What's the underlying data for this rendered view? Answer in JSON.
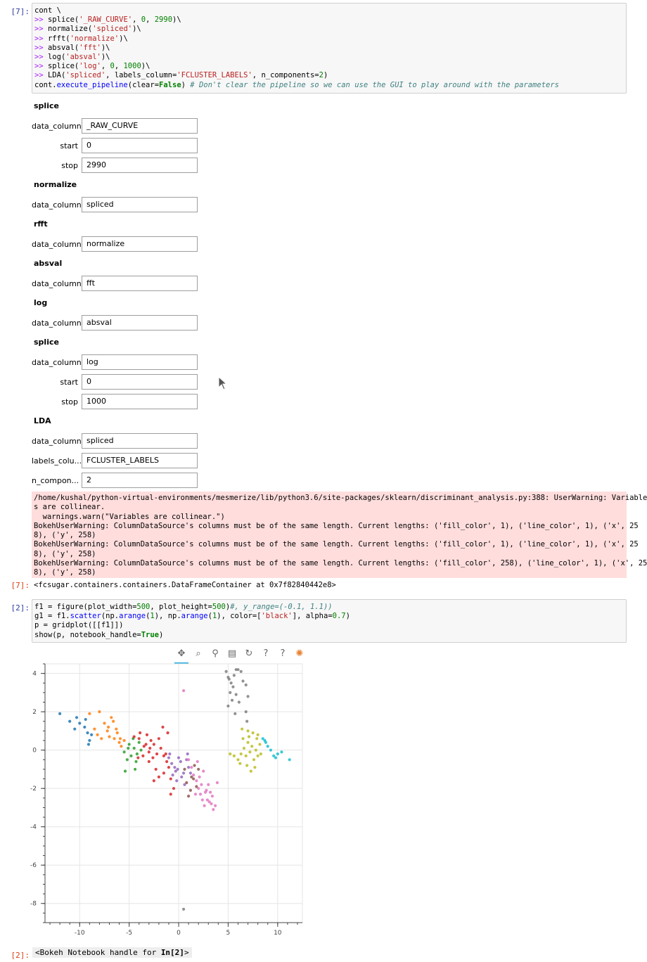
{
  "cell7": {
    "prompt_in": "[7]:",
    "prompt_out": "[7]:",
    "code": [
      [
        [
          "t",
          "cont \\"
        ]
      ],
      [
        [
          "k",
          ">>"
        ],
        [
          "t",
          " splice("
        ],
        [
          "s",
          "'_RAW_CURVE'"
        ],
        [
          "t",
          ", "
        ],
        [
          "n",
          "0"
        ],
        [
          "t",
          ", "
        ],
        [
          "n",
          "2990"
        ],
        [
          "t",
          ")\\"
        ]
      ],
      [
        [
          "k",
          ">>"
        ],
        [
          "t",
          " normalize("
        ],
        [
          "s",
          "'spliced'"
        ],
        [
          "t",
          ")\\"
        ]
      ],
      [
        [
          "k",
          ">>"
        ],
        [
          "t",
          " rfft("
        ],
        [
          "s",
          "'normalize'"
        ],
        [
          "t",
          ")\\"
        ]
      ],
      [
        [
          "k",
          ">>"
        ],
        [
          "t",
          " absval("
        ],
        [
          "s",
          "'fft'"
        ],
        [
          "t",
          ")\\"
        ]
      ],
      [
        [
          "k",
          ">>"
        ],
        [
          "t",
          " log("
        ],
        [
          "s",
          "'absval'"
        ],
        [
          "t",
          ")\\"
        ]
      ],
      [
        [
          "k",
          ">>"
        ],
        [
          "t",
          " splice("
        ],
        [
          "s",
          "'log'"
        ],
        [
          "t",
          ", "
        ],
        [
          "n",
          "0"
        ],
        [
          "t",
          ", "
        ],
        [
          "n",
          "1000"
        ],
        [
          "t",
          ")\\"
        ]
      ],
      [
        [
          "k",
          ">>"
        ],
        [
          "t",
          " LDA("
        ],
        [
          "s",
          "'spliced'"
        ],
        [
          "t",
          ", labels_column="
        ],
        [
          "s",
          "'FCLUSTER_LABELS'"
        ],
        [
          "t",
          ", n_components="
        ],
        [
          "n",
          "2"
        ],
        [
          "t",
          ")"
        ]
      ],
      [
        [
          "t",
          "cont."
        ],
        [
          "f",
          "execute_pipeline"
        ],
        [
          "t",
          "(clear="
        ],
        [
          "kw",
          "False"
        ],
        [
          "t",
          ") "
        ],
        [
          "c",
          "# Don't clear the pipeline so we can use the GUI to play around with the parameters"
        ]
      ]
    ],
    "widget_groups": [
      {
        "title": "splice",
        "fields": [
          {
            "label": "data_column",
            "value": "_RAW_CURVE"
          },
          {
            "label": "start",
            "value": "0"
          },
          {
            "label": "stop",
            "value": "2990"
          }
        ]
      },
      {
        "title": "normalize",
        "fields": [
          {
            "label": "data_column",
            "value": "spliced"
          }
        ]
      },
      {
        "title": "rfft",
        "fields": [
          {
            "label": "data_column",
            "value": "normalize"
          }
        ]
      },
      {
        "title": "absval",
        "fields": [
          {
            "label": "data_column",
            "value": "fft"
          }
        ]
      },
      {
        "title": "log",
        "fields": [
          {
            "label": "data_column",
            "value": "absval"
          }
        ]
      },
      {
        "title": "splice",
        "fields": [
          {
            "label": "data_column",
            "value": "log"
          },
          {
            "label": "start",
            "value": "0"
          },
          {
            "label": "stop",
            "value": "1000"
          }
        ]
      },
      {
        "title": "LDA",
        "fields": [
          {
            "label": "data_column",
            "value": "spliced"
          },
          {
            "label": "labels_colu...",
            "value": "FCLUSTER_LABELS"
          },
          {
            "label": "n_compon...",
            "value": "2"
          }
        ]
      }
    ],
    "stderr": [
      "/home/kushal/python-virtual-environments/mesmerize/lib/python3.6/site-packages/sklearn/discriminant_analysis.py:388: UserWarning: Variable",
      "s are collinear.",
      "  warnings.warn(\"Variables are collinear.\")",
      "BokehUserWarning: ColumnDataSource's columns must be of the same length. Current lengths: ('fill_color', 1), ('line_color', 1), ('x', 25",
      "8), ('y', 258)",
      "BokehUserWarning: ColumnDataSource's columns must be of the same length. Current lengths: ('fill_color', 1), ('line_color', 1), ('x', 25",
      "8), ('y', 258)",
      "BokehUserWarning: ColumnDataSource's columns must be of the same length. Current lengths: ('fill_color', 258), ('line_color', 1), ('x', 25",
      "8), ('y', 258)"
    ],
    "output": "<fcsugar.containers.containers.DataFrameContainer at 0x7f82840442e8>"
  },
  "cell2": {
    "prompt_in": "[2]:",
    "prompt_out": "[2]:",
    "code": [
      [
        [
          "t",
          "f1 = figure(plot_width="
        ],
        [
          "n",
          "500"
        ],
        [
          "t",
          ", plot_height="
        ],
        [
          "n",
          "500"
        ],
        [
          "t",
          ")"
        ],
        [
          "c",
          "#, y_range=(-0.1, 1.1))"
        ]
      ],
      [
        [
          "t",
          "g1 = f1."
        ],
        [
          "f",
          "scatter"
        ],
        [
          "t",
          "(np."
        ],
        [
          "f",
          "arange"
        ],
        [
          "t",
          "("
        ],
        [
          "n",
          "1"
        ],
        [
          "t",
          "), np."
        ],
        [
          "f",
          "arange"
        ],
        [
          "t",
          "("
        ],
        [
          "n",
          "1"
        ],
        [
          "t",
          "), color=["
        ],
        [
          "s",
          "'black'"
        ],
        [
          "t",
          "], alpha="
        ],
        [
          "n",
          "0.7"
        ],
        [
          "t",
          ")"
        ]
      ],
      [
        [
          "t",
          "p = gridplot([[f1]])"
        ]
      ],
      [
        [
          "t",
          "show(p, notebook_handle="
        ],
        [
          "kw",
          "True"
        ],
        [
          "t",
          ")"
        ]
      ]
    ],
    "handle_text_pre": "<Bokeh Notebook handle for ",
    "handle_text_bold": "In[2]",
    "handle_text_post": ">"
  },
  "toolbar": [
    {
      "name": "pan-tool-icon",
      "glyph": "✥",
      "active": true
    },
    {
      "name": "box-zoom-tool-icon",
      "glyph": "⌕",
      "active": false
    },
    {
      "name": "wheel-zoom-tool-icon",
      "glyph": "⚲",
      "active": false
    },
    {
      "name": "save-tool-icon",
      "glyph": "▤",
      "active": false
    },
    {
      "name": "reset-tool-icon",
      "glyph": "↻",
      "active": false
    },
    {
      "name": "help-icon",
      "glyph": "?",
      "active": false
    },
    {
      "name": "help-icon-2",
      "glyph": "?",
      "active": false
    },
    {
      "name": "bokeh-logo-icon",
      "glyph": "✺",
      "active": false
    }
  ],
  "chart_data": {
    "type": "scatter",
    "xlim": [
      -13.5,
      12.5
    ],
    "ylim": [
      -9,
      4.5
    ],
    "xticks": [
      -10,
      -5,
      0,
      5,
      10
    ],
    "yticks": [
      4,
      2,
      0,
      -2,
      -4,
      -6,
      -8
    ],
    "grid": true,
    "series": [
      {
        "color": "#1f77b4",
        "points": [
          [
            -12.0,
            1.9
          ],
          [
            -11.0,
            1.5
          ],
          [
            -10.3,
            1.7
          ],
          [
            -10.0,
            1.4
          ],
          [
            -9.5,
            1.2
          ],
          [
            -9.2,
            0.9
          ],
          [
            -9.0,
            0.5
          ],
          [
            -8.8,
            0.8
          ],
          [
            -9.1,
            0.3
          ],
          [
            -10.5,
            1.1
          ],
          [
            -9.4,
            1.6
          ]
        ]
      },
      {
        "color": "#ff7f0e",
        "points": [
          [
            -9.0,
            1.9
          ],
          [
            -8.0,
            2.0
          ],
          [
            -7.5,
            1.4
          ],
          [
            -7.2,
            1.0
          ],
          [
            -7.0,
            0.7
          ],
          [
            -6.8,
            1.7
          ],
          [
            -6.5,
            0.6
          ],
          [
            -6.2,
            0.9
          ],
          [
            -6.0,
            0.4
          ],
          [
            -5.8,
            0.2
          ],
          [
            -5.5,
            0.5
          ],
          [
            -6.3,
            1.1
          ],
          [
            -7.8,
            0.6
          ],
          [
            -8.5,
            1.1
          ],
          [
            -8.2,
            0.8
          ],
          [
            -7.1,
            1.2
          ],
          [
            -6.6,
            1.5
          ],
          [
            -5.9,
            0.6
          ]
        ]
      },
      {
        "color": "#2ca02c",
        "points": [
          [
            -5.5,
            -0.1
          ],
          [
            -5.0,
            0.3
          ],
          [
            -4.8,
            -0.3
          ],
          [
            -4.5,
            0.1
          ],
          [
            -4.2,
            -0.2
          ],
          [
            -4.0,
            0.4
          ],
          [
            -5.2,
            -0.5
          ],
          [
            -4.6,
            0.6
          ],
          [
            -3.8,
            0.0
          ],
          [
            -5.4,
            -1.1
          ],
          [
            -4.4,
            -1.0
          ],
          [
            -5.1,
            0.1
          ],
          [
            -4.3,
            -0.6
          ]
        ]
      },
      {
        "color": "#d62728",
        "points": [
          [
            -4.5,
            0.7
          ],
          [
            -4.0,
            0.6
          ],
          [
            -3.5,
            0.2
          ],
          [
            -3.2,
            0.8
          ],
          [
            -3.0,
            -0.1
          ],
          [
            -2.8,
            0.5
          ],
          [
            -2.5,
            0.3
          ],
          [
            -2.2,
            -0.2
          ],
          [
            -2.0,
            0.6
          ],
          [
            -1.8,
            0.1
          ],
          [
            -1.5,
            -0.3
          ],
          [
            -1.2,
            -0.6
          ],
          [
            -1.0,
            -0.9
          ],
          [
            -2.3,
            -1.0
          ],
          [
            -2.0,
            -1.4
          ],
          [
            -1.5,
            -1.2
          ],
          [
            -0.8,
            -1.5
          ],
          [
            -0.5,
            -2.0
          ],
          [
            -2.5,
            -1.6
          ],
          [
            -3.0,
            -0.6
          ],
          [
            -3.6,
            -0.3
          ],
          [
            -3.3,
            0.3
          ],
          [
            -2.6,
            -0.4
          ],
          [
            -1.1,
            0.9
          ],
          [
            -1.6,
            1.2
          ],
          [
            -3.9,
            0.9
          ],
          [
            -0.8,
            -2.3
          ],
          [
            -1.3,
            -0.2
          ],
          [
            -2.9,
            0.1
          ],
          [
            -4.1,
            -0.4
          ]
        ]
      },
      {
        "color": "#9467bd",
        "points": [
          [
            -1.0,
            -0.4
          ],
          [
            -0.7,
            -0.7
          ],
          [
            -0.4,
            -0.9
          ],
          [
            -0.1,
            -1.0
          ],
          [
            0.2,
            -0.6
          ],
          [
            0.5,
            -1.2
          ],
          [
            0.8,
            -0.5
          ],
          [
            1.0,
            -0.9
          ],
          [
            -0.6,
            -1.3
          ],
          [
            -0.2,
            -1.6
          ],
          [
            0.3,
            -1.4
          ],
          [
            0.6,
            -1.8
          ],
          [
            1.2,
            -1.2
          ],
          [
            -0.9,
            -0.2
          ],
          [
            0.0,
            -0.4
          ],
          [
            0.9,
            -0.2
          ],
          [
            -0.3,
            -1.1
          ]
        ]
      },
      {
        "color": "#8c564b",
        "points": [
          [
            0.8,
            -1.7
          ],
          [
            1.2,
            -2.1
          ],
          [
            1.5,
            -1.5
          ],
          [
            1.8,
            -1.9
          ],
          [
            1.0,
            -2.4
          ],
          [
            1.6,
            -0.8
          ],
          [
            2.0,
            -1.0
          ],
          [
            0.6,
            -1.0
          ],
          [
            1.3,
            -1.4
          ]
        ]
      },
      {
        "color": "#e377c2",
        "points": [
          [
            0.5,
            3.1
          ],
          [
            1.0,
            -0.5
          ],
          [
            1.3,
            -0.9
          ],
          [
            1.5,
            -1.3
          ],
          [
            1.8,
            -1.6
          ],
          [
            2.0,
            -2.0
          ],
          [
            2.2,
            -2.3
          ],
          [
            2.4,
            -2.6
          ],
          [
            2.6,
            -2.9
          ],
          [
            2.8,
            -2.1
          ],
          [
            3.0,
            -1.8
          ],
          [
            3.2,
            -2.2
          ],
          [
            3.3,
            -2.8
          ],
          [
            3.5,
            -3.1
          ],
          [
            3.7,
            -2.9
          ],
          [
            3.9,
            -1.7
          ],
          [
            1.7,
            -2.3
          ],
          [
            2.1,
            -1.4
          ],
          [
            2.5,
            -1.1
          ],
          [
            2.9,
            -2.6
          ],
          [
            3.4,
            -2.4
          ],
          [
            1.9,
            -0.6
          ],
          [
            2.3,
            -1.8
          ],
          [
            3.1,
            -2.7
          ],
          [
            2.7,
            -2.2
          ]
        ]
      },
      {
        "color": "#7f7f7f",
        "points": [
          [
            4.8,
            4.1
          ],
          [
            5.0,
            3.8
          ],
          [
            5.3,
            3.5
          ],
          [
            5.6,
            3.9
          ],
          [
            5.8,
            4.2
          ],
          [
            6.0,
            4.2
          ],
          [
            6.3,
            4.1
          ],
          [
            5.5,
            3.3
          ],
          [
            5.2,
            3.0
          ],
          [
            5.8,
            2.9
          ],
          [
            6.5,
            3.6
          ],
          [
            6.8,
            3.4
          ],
          [
            7.0,
            2.8
          ],
          [
            5.0,
            2.3
          ],
          [
            5.4,
            2.6
          ],
          [
            6.1,
            2.5
          ],
          [
            6.8,
            2.0
          ],
          [
            6.9,
            1.5
          ],
          [
            5.7,
            1.9
          ],
          [
            5.1,
            3.7
          ],
          [
            0.5,
            -8.3
          ]
        ]
      },
      {
        "color": "#bcbd22",
        "points": [
          [
            5.2,
            -0.2
          ],
          [
            5.6,
            -0.3
          ],
          [
            6.0,
            -0.5
          ],
          [
            6.3,
            -0.2
          ],
          [
            6.6,
            0.1
          ],
          [
            6.8,
            -0.3
          ],
          [
            7.0,
            0.4
          ],
          [
            7.2,
            -0.1
          ],
          [
            7.4,
            0.2
          ],
          [
            7.6,
            -0.5
          ],
          [
            7.8,
            0.0
          ],
          [
            8.0,
            -0.3
          ],
          [
            8.2,
            0.3
          ],
          [
            6.5,
            0.6
          ],
          [
            7.1,
            0.7
          ],
          [
            7.5,
            0.9
          ],
          [
            8.0,
            0.8
          ],
          [
            6.9,
            -0.8
          ],
          [
            7.3,
            -1.1
          ],
          [
            7.7,
            -0.9
          ],
          [
            6.4,
            1.1
          ],
          [
            7.9,
            0.6
          ],
          [
            8.3,
            -0.2
          ],
          [
            6.2,
            -0.7
          ],
          [
            7.0,
            1.0
          ]
        ]
      },
      {
        "color": "#17becf",
        "points": [
          [
            8.5,
            0.6
          ],
          [
            8.8,
            0.4
          ],
          [
            9.0,
            0.2
          ],
          [
            9.3,
            0.0
          ],
          [
            9.6,
            -0.3
          ],
          [
            10.0,
            -0.2
          ],
          [
            10.4,
            -0.1
          ],
          [
            11.2,
            -0.5
          ],
          [
            9.8,
            -0.4
          ],
          [
            8.7,
            0.5
          ]
        ]
      }
    ]
  }
}
